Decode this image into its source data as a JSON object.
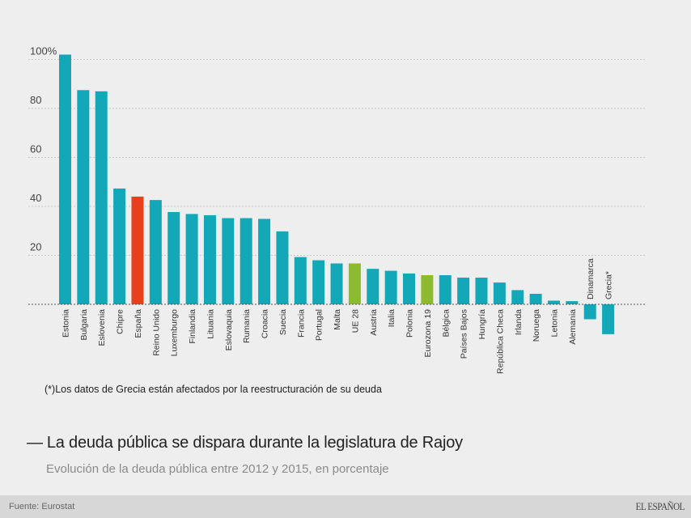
{
  "chart_data": {
    "type": "bar",
    "title": "La deuda pública se dispara durante la legislatura de Rajoy",
    "subtitle": "Evolución de la deuda pública entre 2012 y 2015, en porcentaje",
    "xlabel": "",
    "ylabel": "",
    "ylim": [
      -14,
      102
    ],
    "yticks": [
      {
        "value": 100,
        "label": "100%"
      },
      {
        "value": 80,
        "label": "80"
      },
      {
        "value": 60,
        "label": "60"
      },
      {
        "value": 40,
        "label": "40"
      },
      {
        "value": 20,
        "label": "20"
      }
    ],
    "grid": true,
    "categories": [
      "Estonia",
      "Bulgaria",
      "Eslovenia",
      "Chipre",
      "España",
      "Reino Unido",
      "Luxemburgo",
      "Finlandia",
      "Lituania",
      "Eslovaquia",
      "Rumania",
      "Croacia",
      "Suecia",
      "Francia",
      "Portugal",
      "Malta",
      "UE 28",
      "Austria",
      "Italia",
      "Polonia",
      "Eurozona 19",
      "Bélgica",
      "Países Bajos",
      "Hungría",
      "República Checa",
      "Irlanda",
      "Noruega",
      "Letonia",
      "Alemania",
      "Dinamarca",
      "Grecia*"
    ],
    "values": [
      102,
      87.5,
      87,
      47.3,
      44,
      42.6,
      37.7,
      36.9,
      36.4,
      35.2,
      35.2,
      34.9,
      29.8,
      19.3,
      18.0,
      16.7,
      16.7,
      14.5,
      13.7,
      12.6,
      11.9,
      11.9,
      10.9,
      10.9,
      8.9,
      5.8,
      4.3,
      1.5,
      1.3,
      -6.1,
      -12.2
    ],
    "highlight": {
      "España": "red",
      "UE 28": "green",
      "Eurozona 19": "green"
    },
    "note": "(*)Los datos de Grecia están afectados por la reestructuración de su deuda"
  },
  "colors": {
    "default": "#13a8b8",
    "red": "#e8401c",
    "green": "#8dbb2f"
  },
  "title_dash": "—",
  "footer": {
    "source": "Fuente: Eurostat",
    "brand": "EL ESPAÑOL"
  }
}
